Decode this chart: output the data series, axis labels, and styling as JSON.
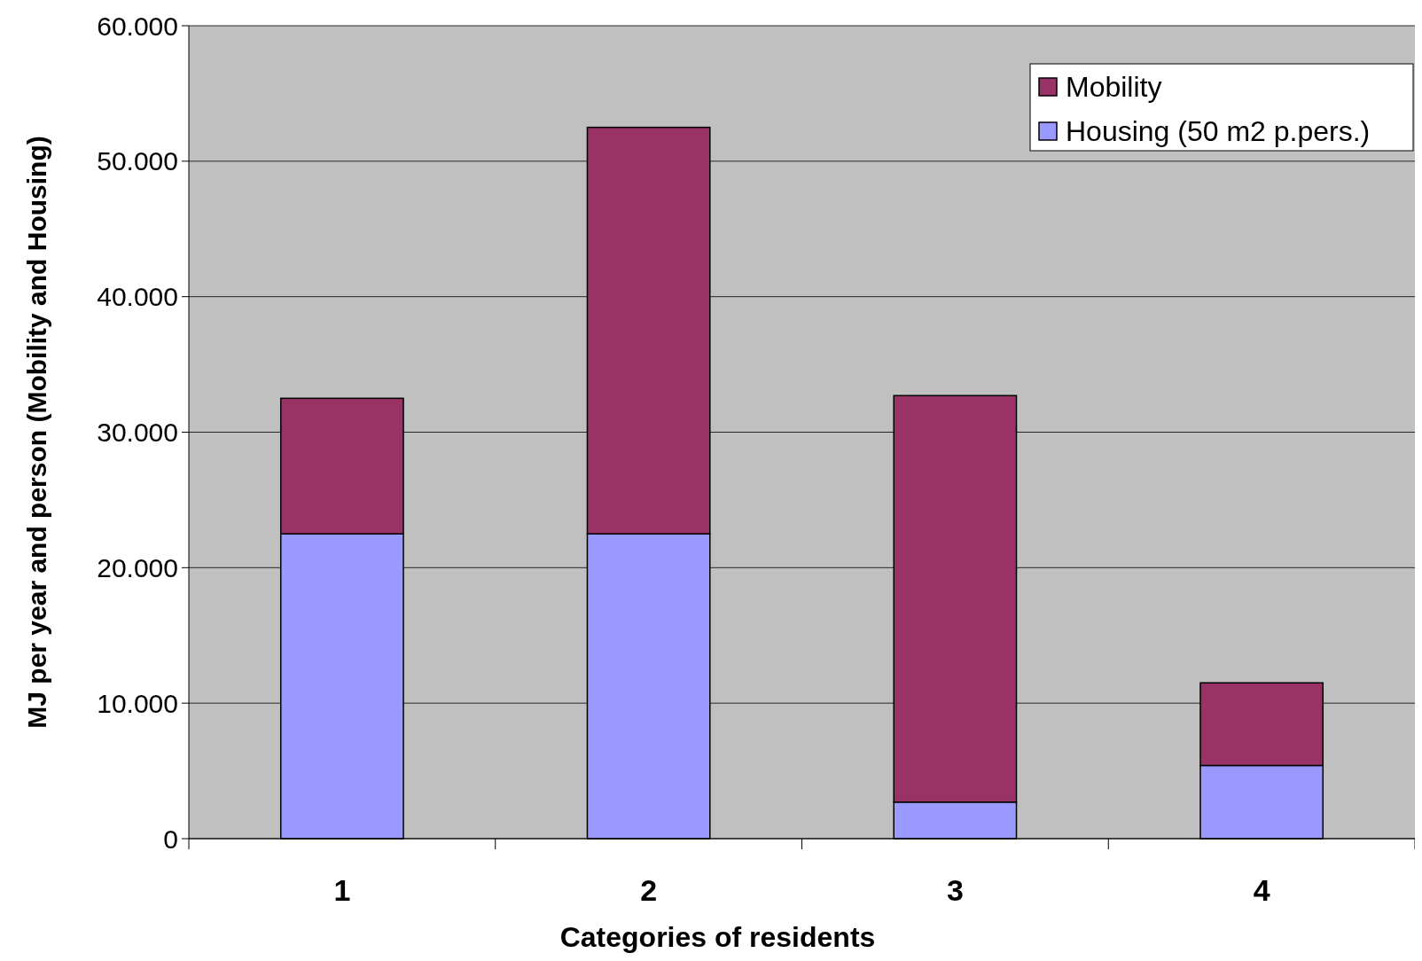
{
  "chart_data": {
    "type": "bar",
    "stacked": true,
    "xlabel": "Categories of residents",
    "ylabel": "MJ per year and person (Mobility and Housing)",
    "categories": [
      "1",
      "2",
      "3",
      "4"
    ],
    "series": [
      {
        "name": "Housing (50 m2 p.pers.)",
        "color": "#9999ff",
        "values": [
          22500,
          22500,
          2700,
          5400
        ]
      },
      {
        "name": "Mobility",
        "color": "#993366",
        "values": [
          10000,
          30000,
          30000,
          6100
        ]
      }
    ],
    "ylim": [
      0,
      60000
    ],
    "yticks": [
      0,
      {
        "value": 10000,
        "label": "10.000"
      },
      {
        "value": 20000,
        "label": "20.000"
      },
      {
        "value": 30000,
        "label": "30.000"
      },
      {
        "value": 40000,
        "label": "40.000"
      },
      {
        "value": 50000,
        "label": "50.000"
      },
      {
        "value": 60000,
        "label": "60.000"
      }
    ],
    "grid": "y",
    "legend": "top right"
  }
}
